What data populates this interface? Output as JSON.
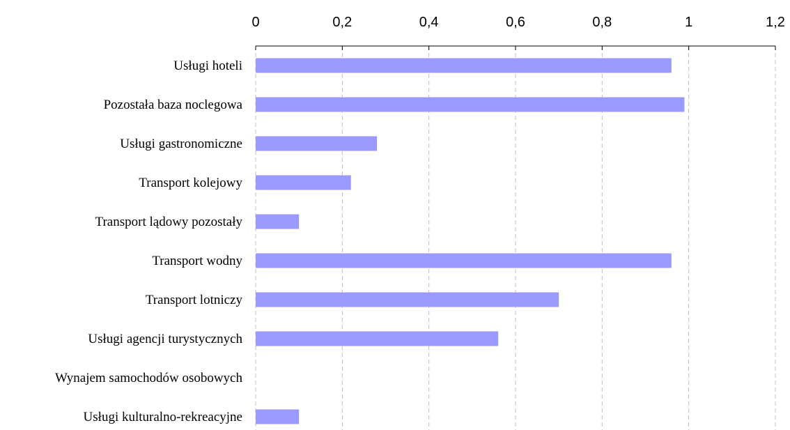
{
  "chart_data": {
    "type": "bar",
    "orientation": "horizontal",
    "categories": [
      "Usługi hoteli",
      "Pozostała baza noclegowa",
      "Usługi gastronomiczne",
      "Transport kolejowy",
      "Transport lądowy pozostały",
      "Transport wodny",
      "Transport lotniczy",
      "Usługi agencji turystycznych",
      "Wynajem samochodów osobowych",
      "Usługi kulturalno-rekreacyjne"
    ],
    "values": [
      0.96,
      0.99,
      0.28,
      0.22,
      0.1,
      0.96,
      0.7,
      0.56,
      0.0,
      0.1
    ],
    "xlim": [
      0,
      1.2
    ],
    "ticks": [
      0,
      0.2,
      0.4,
      0.6,
      0.8,
      1,
      1.2
    ],
    "tick_labels": [
      "0",
      "0,2",
      "0,4",
      "0,6",
      "0,8",
      "1",
      "1,2"
    ],
    "axis_position": "top",
    "grid": true,
    "legend": "none",
    "bar_color": "#9999ff"
  }
}
